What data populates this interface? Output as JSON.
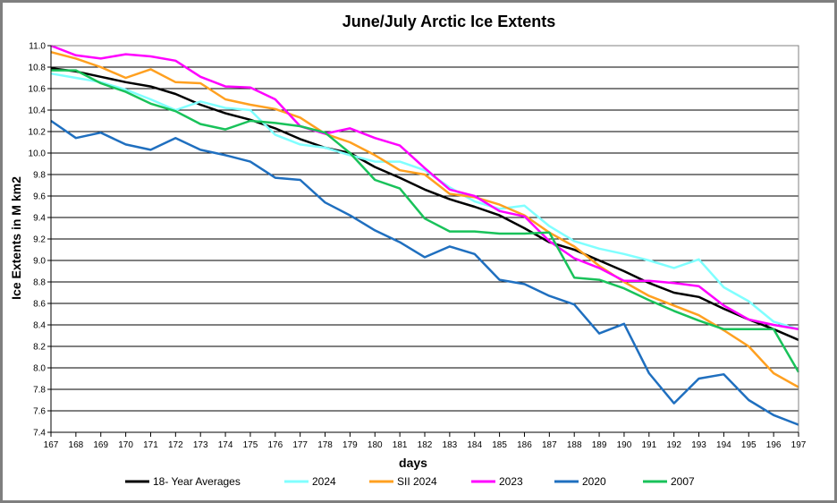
{
  "chart_data": {
    "type": "line",
    "title": "June/July Arctic Ice Extents",
    "xlabel": "days",
    "ylabel": "Ice Extents in M km2",
    "xlim": [
      167,
      197
    ],
    "ylim": [
      7.4,
      11.0
    ],
    "yticks": [
      "7.4",
      "7.6",
      "7.8",
      "8.0",
      "8.2",
      "8.4",
      "8.6",
      "8.8",
      "9.0",
      "9.2",
      "9.4",
      "9.6",
      "9.8",
      "10.0",
      "10.2",
      "10.4",
      "10.6",
      "10.8",
      "11.0"
    ],
    "x": [
      167,
      168,
      169,
      170,
      171,
      172,
      173,
      174,
      175,
      176,
      177,
      178,
      179,
      180,
      181,
      182,
      183,
      184,
      185,
      186,
      187,
      188,
      189,
      190,
      191,
      192,
      193,
      194,
      195,
      196,
      197
    ],
    "grid": true,
    "legend_position": "bottom",
    "series": [
      {
        "name": "18- Year Averages",
        "color": "#000000",
        "values": [
          10.79,
          10.76,
          10.71,
          10.66,
          10.62,
          10.55,
          10.45,
          10.37,
          10.31,
          10.23,
          10.13,
          10.05,
          10.0,
          9.87,
          9.77,
          9.66,
          9.57,
          9.5,
          9.42,
          9.3,
          9.17,
          9.1,
          9.0,
          8.9,
          8.79,
          8.7,
          8.66,
          8.55,
          8.45,
          8.36,
          8.26
        ]
      },
      {
        "name": "2024",
        "color": "#80ffff",
        "values": [
          10.74,
          10.7,
          10.66,
          10.59,
          10.5,
          10.4,
          10.48,
          10.42,
          10.4,
          10.17,
          10.08,
          10.05,
          9.98,
          9.92,
          9.92,
          9.84,
          9.68,
          9.55,
          9.48,
          9.51,
          9.32,
          9.18,
          9.11,
          9.06,
          9.0,
          8.93,
          9.01,
          8.75,
          8.62,
          8.43,
          8.36
        ]
      },
      {
        "name": "SII 2024",
        "color": "#ffa020",
        "values": [
          10.94,
          10.88,
          10.8,
          10.7,
          10.78,
          10.66,
          10.65,
          10.5,
          10.45,
          10.41,
          10.33,
          10.18,
          10.1,
          9.98,
          9.84,
          9.8,
          9.62,
          9.59,
          9.52,
          9.42,
          9.26,
          9.13,
          8.95,
          8.8,
          8.67,
          8.58,
          8.49,
          8.35,
          8.2,
          7.95,
          7.82
        ]
      },
      {
        "name": "2023",
        "color": "#ff00ff",
        "values": [
          11.0,
          10.91,
          10.88,
          10.92,
          10.9,
          10.86,
          10.71,
          10.62,
          10.61,
          10.5,
          10.25,
          10.18,
          10.23,
          10.14,
          10.07,
          9.86,
          9.66,
          9.6,
          9.46,
          9.41,
          9.18,
          9.02,
          8.93,
          8.81,
          8.81,
          8.79,
          8.76,
          8.58,
          8.45,
          8.4,
          8.36
        ]
      },
      {
        "name": "2020",
        "color": "#1f6fbf",
        "values": [
          10.3,
          10.14,
          10.19,
          10.08,
          10.03,
          10.14,
          10.03,
          9.98,
          9.92,
          9.77,
          9.75,
          9.54,
          9.42,
          9.28,
          9.17,
          9.03,
          9.13,
          9.06,
          8.82,
          8.78,
          8.67,
          8.59,
          8.32,
          8.41,
          7.95,
          7.67,
          7.9,
          7.94,
          7.7,
          7.56,
          7.47
        ]
      },
      {
        "name": "2007",
        "color": "#19c25a",
        "values": [
          10.77,
          10.77,
          10.65,
          10.57,
          10.46,
          10.39,
          10.27,
          10.22,
          10.3,
          10.28,
          10.25,
          10.19,
          10.0,
          9.75,
          9.67,
          9.39,
          9.27,
          9.27,
          9.25,
          9.25,
          9.26,
          8.84,
          8.82,
          8.74,
          8.63,
          8.53,
          8.44,
          8.36,
          8.36,
          8.36,
          7.96
        ]
      }
    ]
  }
}
